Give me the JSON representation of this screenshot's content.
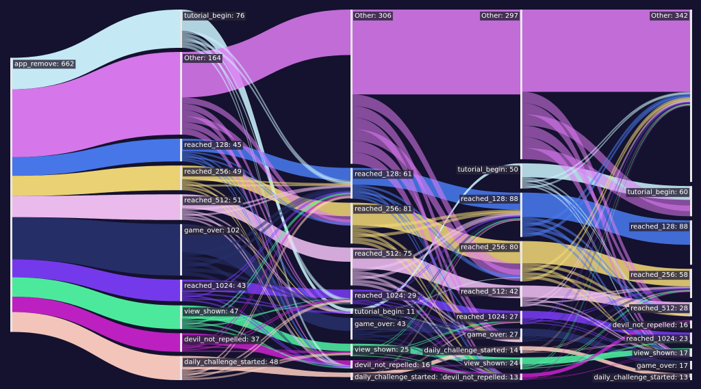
{
  "chart_data": {
    "type": "sankey",
    "title": "",
    "colors": {
      "background": "#14122e",
      "tutorial_begin": "#cdf6ff",
      "Other": "#e07cf5",
      "reached_128": "#4a7cf2",
      "reached_256": "#f5dc78",
      "reached_512": "#f5c4f7",
      "game_over": "#27306a",
      "reached_1024": "#7a3cf7",
      "view_shown": "#4ff5a3",
      "devil_not_repelled": "#c622c9",
      "daily_challenge_started": "#ffcfc2",
      "app_remove": "#2a2a48"
    },
    "columns": [
      {
        "nodes": [
          {
            "id": "app_remove",
            "label": "app_remove: 662",
            "value": 662,
            "color_key": "app_remove"
          }
        ]
      },
      {
        "nodes": [
          {
            "id": "tutorial_begin",
            "label": "tutorial_begin: 76",
            "value": 76,
            "color_key": "tutorial_begin"
          },
          {
            "id": "Other",
            "label": "Other: 164",
            "value": 164,
            "color_key": "Other"
          },
          {
            "id": "reached_128",
            "label": "reached_128: 45",
            "value": 45,
            "color_key": "reached_128"
          },
          {
            "id": "reached_256",
            "label": "reached_256: 49",
            "value": 49,
            "color_key": "reached_256"
          },
          {
            "id": "reached_512",
            "label": "reached_512: 51",
            "value": 51,
            "color_key": "reached_512"
          },
          {
            "id": "game_over",
            "label": "game_over: 102",
            "value": 102,
            "color_key": "game_over"
          },
          {
            "id": "reached_1024",
            "label": "reached_1024: 43",
            "value": 43,
            "color_key": "reached_1024"
          },
          {
            "id": "view_shown",
            "label": "view_shown: 47",
            "value": 47,
            "color_key": "view_shown"
          },
          {
            "id": "devil_not_repelled",
            "label": "devil_not_repelled: 37",
            "value": 37,
            "color_key": "devil_not_repelled"
          },
          {
            "id": "daily_challenge_started",
            "label": "daily_challenge_started: 48",
            "value": 48,
            "color_key": "daily_challenge_started"
          }
        ]
      },
      {
        "nodes": [
          {
            "id": "Other",
            "label": "Other: 306",
            "value": 306,
            "color_key": "Other"
          },
          {
            "id": "reached_128",
            "label": "reached_128: 61",
            "value": 61,
            "color_key": "reached_128"
          },
          {
            "id": "reached_256",
            "label": "reached_256: 81",
            "value": 81,
            "color_key": "reached_256"
          },
          {
            "id": "reached_512",
            "label": "reached_512: 75",
            "value": 75,
            "color_key": "reached_512"
          },
          {
            "id": "reached_1024",
            "label": "reached_1024: 29",
            "value": 29,
            "color_key": "reached_1024"
          },
          {
            "id": "tutorial_begin",
            "label": "tutorial_begin: 11",
            "value": 11,
            "color_key": "tutorial_begin"
          },
          {
            "id": "game_over",
            "label": "game_over: 43",
            "value": 43,
            "color_key": "game_over"
          },
          {
            "id": "view_shown",
            "label": "view_shown: 25",
            "value": 25,
            "color_key": "view_shown"
          },
          {
            "id": "devil_not_repelled",
            "label": "devil_not_repelled: 16",
            "value": 16,
            "color_key": "devil_not_repelled"
          },
          {
            "id": "daily_challenge_started",
            "label": "daily_challenge_started: 15",
            "value": 15,
            "color_key": "daily_challenge_started"
          }
        ]
      },
      {
        "nodes": [
          {
            "id": "Other",
            "label": "Other: 297",
            "value": 297,
            "color_key": "Other"
          },
          {
            "id": "tutorial_begin",
            "label": "tutorial_begin: 50",
            "value": 50,
            "color_key": "tutorial_begin"
          },
          {
            "id": "reached_128",
            "label": "reached_128: 88",
            "value": 88,
            "color_key": "reached_128"
          },
          {
            "id": "reached_256",
            "label": "reached_256: 80",
            "value": 80,
            "color_key": "reached_256"
          },
          {
            "id": "reached_512",
            "label": "reached_512: 42",
            "value": 42,
            "color_key": "reached_512"
          },
          {
            "id": "reached_1024",
            "label": "reached_1024: 27",
            "value": 27,
            "color_key": "reached_1024"
          },
          {
            "id": "game_over",
            "label": "game_over: 27",
            "value": 27,
            "color_key": "game_over"
          },
          {
            "id": "daily_challenge_started",
            "label": "daily_challenge_started: 14",
            "value": 14,
            "color_key": "daily_challenge_started"
          },
          {
            "id": "view_shown",
            "label": "view_shown: 24",
            "value": 24,
            "color_key": "view_shown"
          },
          {
            "id": "devil_not_repelled",
            "label": "devil_not_repelled: 13",
            "value": 13,
            "color_key": "devil_not_repelled"
          }
        ]
      },
      {
        "nodes": [
          {
            "id": "Other",
            "label": "Other: 342",
            "value": 342,
            "color_key": "Other"
          },
          {
            "id": "tutorial_begin",
            "label": "tutorial_begin: 60",
            "value": 60,
            "color_key": "tutorial_begin"
          },
          {
            "id": "reached_128",
            "label": "reached_128: 88",
            "value": 88,
            "color_key": "reached_128"
          },
          {
            "id": "reached_256",
            "label": "reached_256: 58",
            "value": 58,
            "color_key": "reached_256"
          },
          {
            "id": "reached_512",
            "label": "reached_512: 28",
            "value": 28,
            "color_key": "reached_512"
          },
          {
            "id": "devil_not_repelled",
            "label": "devil_not_repelled: 16",
            "value": 16,
            "color_key": "devil_not_repelled"
          },
          {
            "id": "reached_1024",
            "label": "reached_1024: 23",
            "value": 23,
            "color_key": "reached_1024"
          },
          {
            "id": "view_shown",
            "label": "view_shown: 17",
            "value": 17,
            "color_key": "view_shown"
          },
          {
            "id": "game_over",
            "label": "game_over: 17",
            "value": 17,
            "color_key": "game_over"
          },
          {
            "id": "daily_challenge_started",
            "label": "daily_challenge_started: 13",
            "value": 13,
            "color_key": "daily_challenge_started"
          }
        ]
      }
    ]
  }
}
